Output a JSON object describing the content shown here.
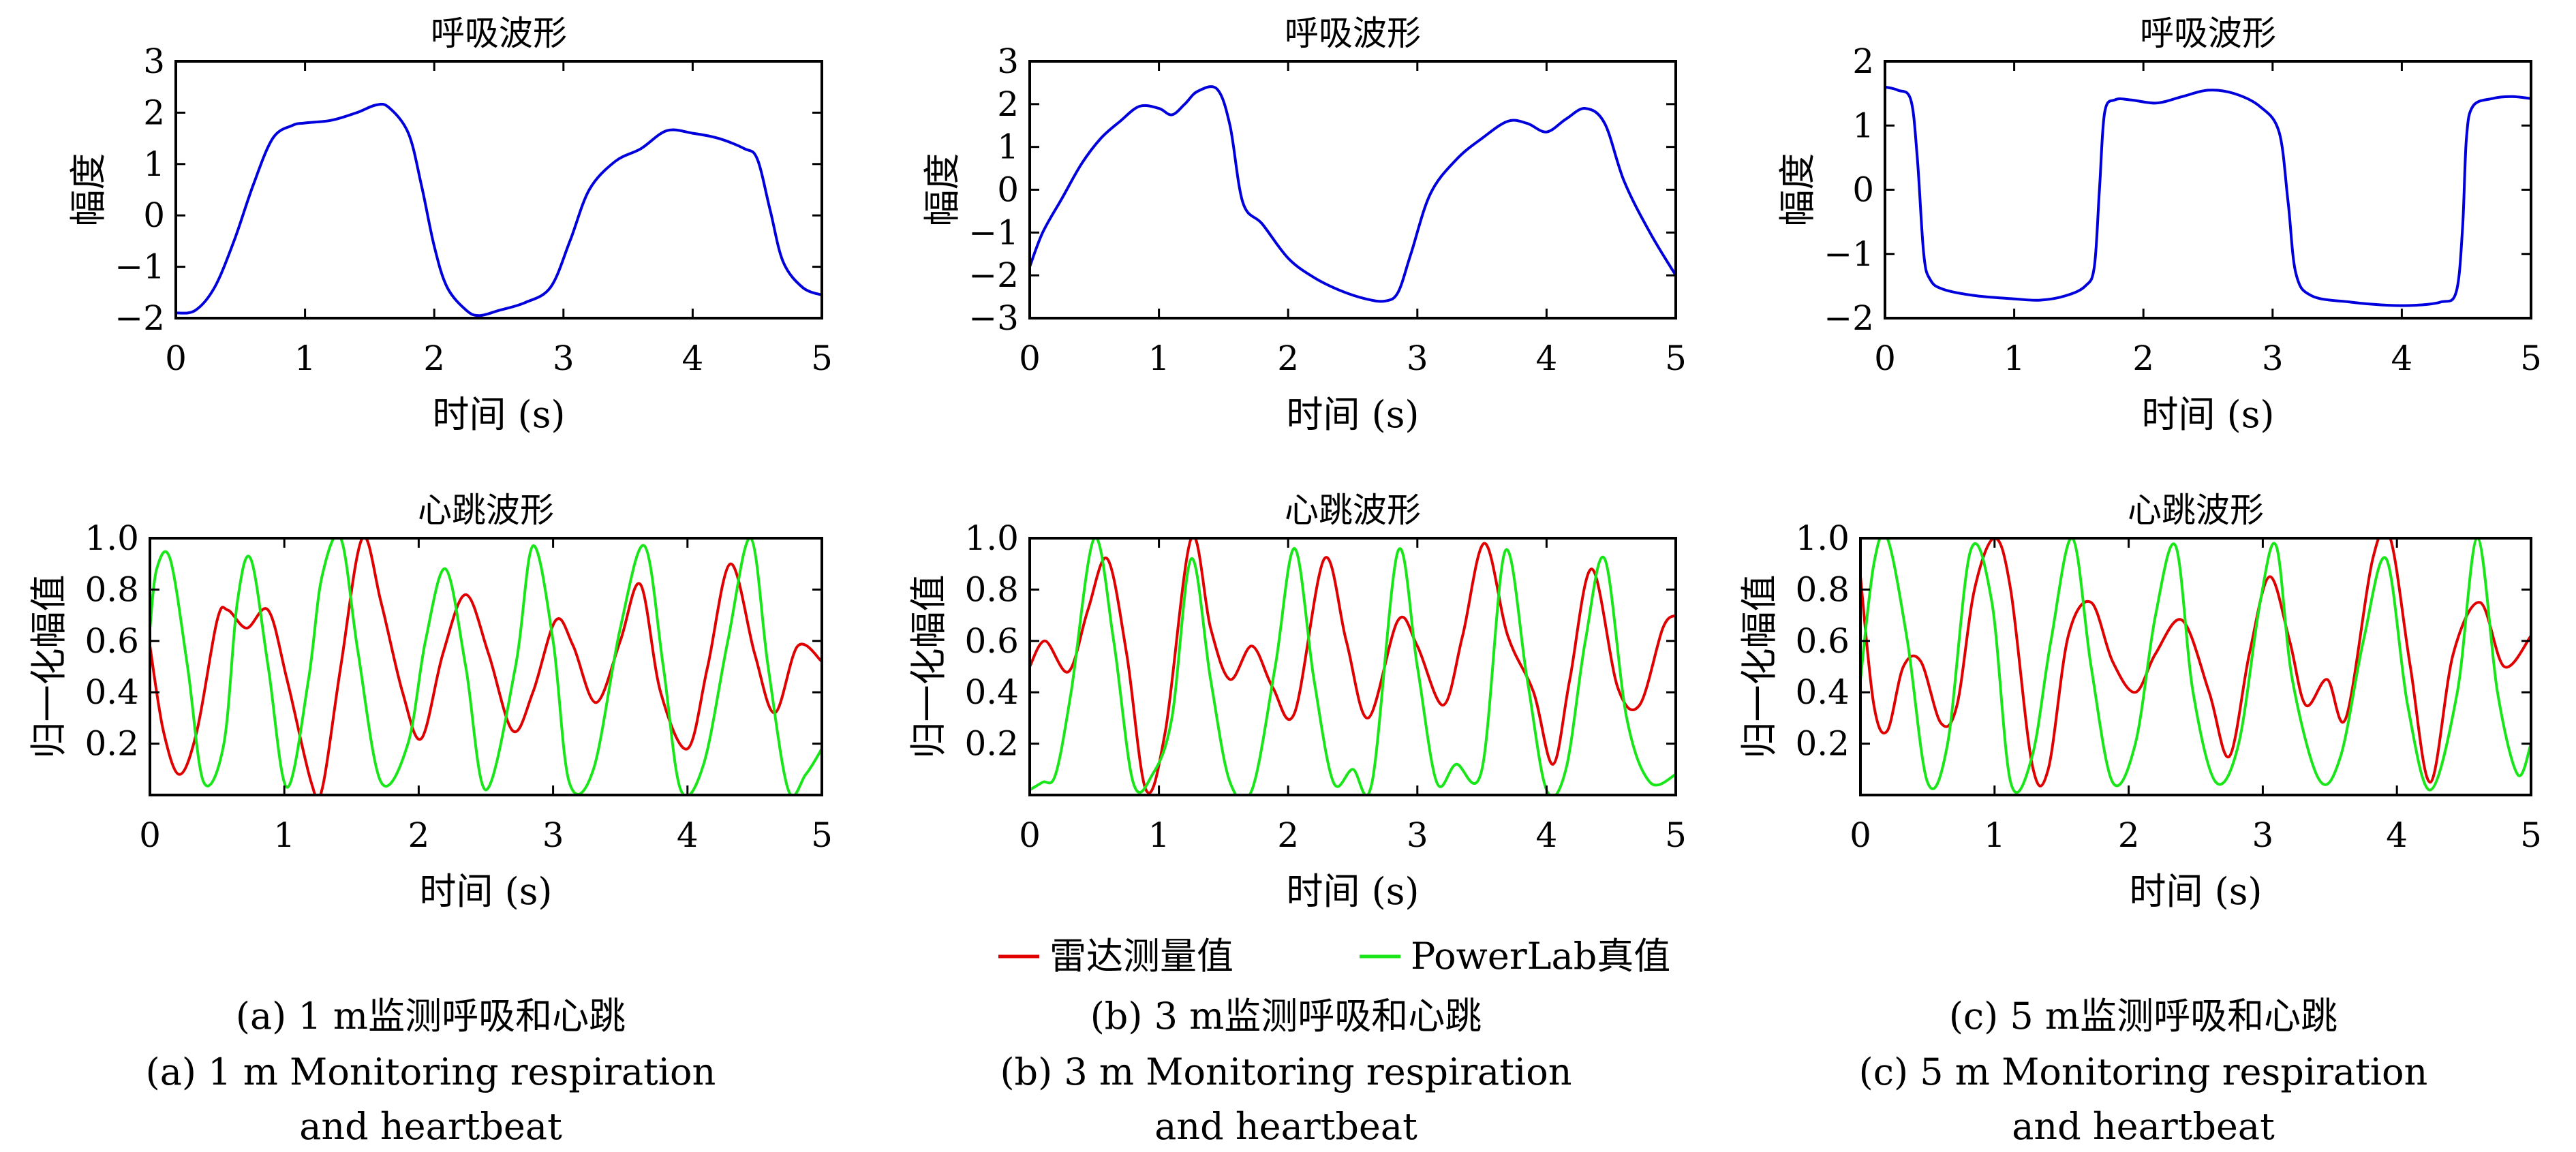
{
  "colors": {
    "radar": "#e00000",
    "powerlab": "#19e619",
    "respiration": "#0000dc",
    "axes": "#000000"
  },
  "legend": {
    "radar_label": "雷达测量值",
    "powerlab_label": "PowerLab真值"
  },
  "captions": [
    {
      "zh": "(a) 1 m监测呼吸和心跳",
      "en1": "(a) 1 m Monitoring respiration",
      "en2": "and heartbeat"
    },
    {
      "zh": "(b) 3 m监测呼吸和心跳",
      "en1": "(b) 3 m Monitoring respiration",
      "en2": "and heartbeat"
    },
    {
      "zh": "(c) 5 m监测呼吸和心跳",
      "en1": "(c) 5 m Monitoring respiration",
      "en2": "and heartbeat"
    }
  ],
  "chart_data": [
    {
      "type": "line",
      "title": "呼吸波形",
      "xlabel": "时间 (s)",
      "ylabel": "幅度",
      "xlim": [
        0,
        5
      ],
      "ylim": [
        -2,
        3
      ],
      "xticks": [
        0,
        1,
        2,
        3,
        4,
        5
      ],
      "yticks": [
        -2,
        -1,
        0,
        1,
        2,
        3
      ],
      "xtick_labels": [
        "0",
        "1",
        "2",
        "3",
        "4",
        "5"
      ],
      "ytick_labels": [
        "−2",
        "−1",
        "0",
        "1",
        "2",
        "3"
      ],
      "series": [
        {
          "color": "#0000dc",
          "x": [
            0,
            0.15,
            0.3,
            0.45,
            0.6,
            0.75,
            0.9,
            1.0,
            1.2,
            1.4,
            1.55,
            1.65,
            1.8,
            1.9,
            2.0,
            2.1,
            2.25,
            2.35,
            2.5,
            2.7,
            2.9,
            3.05,
            3.2,
            3.4,
            3.6,
            3.8,
            4.0,
            4.2,
            4.4,
            4.5,
            4.6,
            4.7,
            4.85,
            5.0
          ],
          "y": [
            -1.9,
            -1.85,
            -1.4,
            -0.5,
            0.6,
            1.5,
            1.75,
            1.8,
            1.85,
            2.0,
            2.15,
            2.1,
            1.6,
            0.6,
            -0.6,
            -1.4,
            -1.85,
            -1.95,
            -1.85,
            -1.7,
            -1.4,
            -0.5,
            0.5,
            1.05,
            1.3,
            1.65,
            1.6,
            1.5,
            1.3,
            1.1,
            0.1,
            -0.9,
            -1.4,
            -1.55
          ]
        }
      ]
    },
    {
      "type": "line",
      "title": "呼吸波形",
      "xlabel": "时间 (s)",
      "ylabel": "幅度",
      "xlim": [
        0,
        5
      ],
      "ylim": [
        -3,
        3
      ],
      "xticks": [
        0,
        1,
        2,
        3,
        4,
        5
      ],
      "yticks": [
        -3,
        -2,
        -1,
        0,
        1,
        2,
        3
      ],
      "xtick_labels": [
        "0",
        "1",
        "2",
        "3",
        "4",
        "5"
      ],
      "ytick_labels": [
        "−3",
        "−2",
        "−1",
        "0",
        "1",
        "2",
        "3"
      ],
      "series": [
        {
          "color": "#0000dc",
          "x": [
            0,
            0.1,
            0.25,
            0.4,
            0.55,
            0.7,
            0.85,
            1.0,
            1.1,
            1.2,
            1.3,
            1.45,
            1.55,
            1.65,
            1.8,
            2.0,
            2.2,
            2.4,
            2.6,
            2.75,
            2.85,
            2.95,
            3.1,
            3.3,
            3.5,
            3.7,
            3.85,
            4.0,
            4.15,
            4.3,
            4.45,
            4.6,
            4.8,
            5.0
          ],
          "y": [
            -1.8,
            -1.0,
            -0.2,
            0.6,
            1.2,
            1.6,
            1.95,
            1.9,
            1.75,
            2.0,
            2.3,
            2.35,
            1.5,
            -0.3,
            -0.8,
            -1.6,
            -2.05,
            -2.35,
            -2.55,
            -2.6,
            -2.4,
            -1.5,
            -0.1,
            0.7,
            1.2,
            1.6,
            1.55,
            1.35,
            1.65,
            1.9,
            1.55,
            0.2,
            -1.0,
            -2.0
          ]
        }
      ]
    },
    {
      "type": "line",
      "title": "呼吸波形",
      "xlabel": "时间 (s)",
      "ylabel": "幅度",
      "xlim": [
        0,
        5
      ],
      "ylim": [
        -2,
        2
      ],
      "xticks": [
        0,
        1,
        2,
        3,
        4,
        5
      ],
      "yticks": [
        -2,
        -1,
        0,
        1,
        2
      ],
      "xtick_labels": [
        "0",
        "1",
        "2",
        "3",
        "4",
        "5"
      ],
      "ytick_labels": [
        "−2",
        "−1",
        "0",
        "1",
        "2"
      ],
      "series": [
        {
          "color": "#0000dc",
          "x": [
            0,
            0.1,
            0.2,
            0.25,
            0.3,
            0.35,
            0.45,
            0.7,
            1.0,
            1.2,
            1.4,
            1.55,
            1.62,
            1.66,
            1.7,
            1.78,
            1.9,
            2.1,
            2.3,
            2.5,
            2.7,
            2.9,
            3.05,
            3.12,
            3.18,
            3.3,
            3.6,
            3.9,
            4.1,
            4.3,
            4.42,
            4.47,
            4.5,
            4.55,
            4.7,
            4.85,
            5.0
          ],
          "y": [
            1.6,
            1.55,
            1.4,
            0.5,
            -1.0,
            -1.4,
            -1.55,
            -1.65,
            -1.7,
            -1.72,
            -1.65,
            -1.5,
            -1.2,
            0,
            1.2,
            1.4,
            1.4,
            1.35,
            1.45,
            1.55,
            1.5,
            1.3,
            0.9,
            -0.2,
            -1.3,
            -1.65,
            -1.75,
            -1.8,
            -1.8,
            -1.75,
            -1.6,
            -0.6,
            0.8,
            1.3,
            1.42,
            1.45,
            1.42
          ]
        }
      ]
    },
    {
      "type": "line",
      "title": "心跳波形",
      "xlabel": "时间 (s)",
      "ylabel": "归一化幅值",
      "xlim": [
        0,
        5
      ],
      "ylim": [
        0,
        1
      ],
      "xticks": [
        0,
        1,
        2,
        3,
        4,
        5
      ],
      "yticks": [
        0.2,
        0.4,
        0.6,
        0.8,
        1.0
      ],
      "xtick_labels": [
        "0",
        "1",
        "2",
        "3",
        "4",
        "5"
      ],
      "ytick_labels": [
        "0.2",
        "0.4",
        "0.6",
        "0.8",
        "1.0"
      ],
      "series": [
        {
          "name": "雷达测量值",
          "color": "#e00000",
          "x": [
            0,
            0.1,
            0.22,
            0.35,
            0.5,
            0.58,
            0.72,
            0.88,
            1.02,
            1.2,
            1.28,
            1.42,
            1.58,
            1.72,
            1.88,
            2.02,
            2.18,
            2.35,
            2.52,
            2.7,
            2.85,
            3.02,
            3.15,
            3.32,
            3.5,
            3.65,
            3.8,
            4.0,
            4.15,
            4.32,
            4.5,
            4.65,
            4.82,
            5.0
          ],
          "y": [
            0.58,
            0.25,
            0.08,
            0.25,
            0.68,
            0.72,
            0.65,
            0.72,
            0.45,
            0.05,
            0.02,
            0.5,
            1.0,
            0.75,
            0.4,
            0.22,
            0.55,
            0.78,
            0.55,
            0.25,
            0.4,
            0.68,
            0.58,
            0.36,
            0.6,
            0.82,
            0.4,
            0.18,
            0.5,
            0.9,
            0.55,
            0.32,
            0.58,
            0.52
          ]
        },
        {
          "name": "PowerLab真值",
          "color": "#19e619",
          "x": [
            0,
            0.05,
            0.15,
            0.28,
            0.4,
            0.55,
            0.65,
            0.75,
            0.88,
            1.02,
            1.18,
            1.28,
            1.42,
            1.55,
            1.72,
            1.92,
            2.05,
            2.2,
            2.35,
            2.5,
            2.72,
            2.85,
            3.0,
            3.12,
            3.3,
            3.5,
            3.68,
            3.82,
            3.95,
            4.12,
            4.3,
            4.47,
            4.6,
            4.75,
            4.88,
            5.0
          ],
          "y": [
            0.65,
            0.88,
            0.92,
            0.5,
            0.05,
            0.2,
            0.75,
            0.92,
            0.5,
            0.03,
            0.45,
            0.85,
            1.0,
            0.55,
            0.05,
            0.2,
            0.6,
            0.88,
            0.5,
            0.02,
            0.5,
            0.97,
            0.6,
            0.05,
            0.1,
            0.65,
            0.97,
            0.5,
            0.02,
            0.12,
            0.6,
            1.0,
            0.5,
            0.02,
            0.08,
            0.18
          ]
        }
      ]
    },
    {
      "type": "line",
      "title": "心跳波形",
      "xlabel": "时间 (s)",
      "ylabel": "归一化幅值",
      "xlim": [
        0,
        5
      ],
      "ylim": [
        0,
        1
      ],
      "xticks": [
        0,
        1,
        2,
        3,
        4,
        5
      ],
      "yticks": [
        0.2,
        0.4,
        0.6,
        0.8,
        1.0
      ],
      "xtick_labels": [
        "0",
        "1",
        "2",
        "3",
        "4",
        "5"
      ],
      "ytick_labels": [
        "0.2",
        "0.4",
        "0.6",
        "0.8",
        "1.0"
      ],
      "series": [
        {
          "name": "雷达测量值",
          "color": "#e00000",
          "x": [
            0,
            0.12,
            0.3,
            0.45,
            0.6,
            0.75,
            0.9,
            1.05,
            1.25,
            1.4,
            1.55,
            1.72,
            1.88,
            2.05,
            2.28,
            2.45,
            2.62,
            2.85,
            3.0,
            3.2,
            3.35,
            3.52,
            3.7,
            3.9,
            4.05,
            4.18,
            4.35,
            4.55,
            4.72,
            4.9,
            5.0
          ],
          "y": [
            0.5,
            0.6,
            0.48,
            0.72,
            0.92,
            0.55,
            0.02,
            0.25,
            1.0,
            0.65,
            0.45,
            0.58,
            0.42,
            0.32,
            0.92,
            0.6,
            0.3,
            0.68,
            0.58,
            0.35,
            0.62,
            0.98,
            0.62,
            0.4,
            0.12,
            0.45,
            0.88,
            0.42,
            0.35,
            0.65,
            0.7
          ]
        },
        {
          "name": "PowerLab真值",
          "color": "#19e619",
          "x": [
            0,
            0.1,
            0.2,
            0.32,
            0.5,
            0.65,
            0.8,
            0.95,
            1.1,
            1.25,
            1.4,
            1.55,
            1.72,
            1.9,
            2.05,
            2.2,
            2.35,
            2.5,
            2.65,
            2.85,
            3.0,
            3.15,
            3.3,
            3.5,
            3.68,
            3.85,
            4.0,
            4.15,
            4.3,
            4.45,
            4.62,
            4.8,
            5.0
          ],
          "y": [
            0.02,
            0.05,
            0.08,
            0.4,
            1.0,
            0.6,
            0.05,
            0.08,
            0.3,
            0.92,
            0.45,
            0.05,
            0.02,
            0.5,
            0.96,
            0.45,
            0.05,
            0.1,
            0.05,
            0.95,
            0.5,
            0.05,
            0.12,
            0.1,
            0.95,
            0.45,
            0.02,
            0.1,
            0.6,
            0.92,
            0.3,
            0.05,
            0.08
          ]
        }
      ]
    },
    {
      "type": "line",
      "title": "心跳波形",
      "xlabel": "时间 (s)",
      "ylabel": "归一化幅值",
      "xlim": [
        0,
        5
      ],
      "ylim": [
        0,
        1
      ],
      "xticks": [
        0,
        1,
        2,
        3,
        4,
        5
      ],
      "yticks": [
        0.2,
        0.4,
        0.6,
        0.8,
        1.0
      ],
      "xtick_labels": [
        "0",
        "1",
        "2",
        "3",
        "4",
        "5"
      ],
      "ytick_labels": [
        "0.2",
        "0.4",
        "0.6",
        "0.8",
        "1.0"
      ],
      "series": [
        {
          "name": "雷达测量值",
          "color": "#e00000",
          "x": [
            0,
            0.1,
            0.2,
            0.32,
            0.45,
            0.6,
            0.72,
            0.85,
            1.0,
            1.12,
            1.28,
            1.4,
            1.55,
            1.72,
            1.88,
            2.05,
            2.2,
            2.4,
            2.6,
            2.75,
            2.9,
            3.05,
            3.2,
            3.32,
            3.48,
            3.62,
            3.82,
            3.95,
            4.1,
            4.25,
            4.42,
            4.62,
            4.8,
            5.0
          ],
          "y": [
            0.85,
            0.35,
            0.25,
            0.5,
            0.52,
            0.28,
            0.35,
            0.8,
            1.0,
            0.8,
            0.12,
            0.1,
            0.62,
            0.75,
            0.52,
            0.4,
            0.55,
            0.68,
            0.4,
            0.15,
            0.55,
            0.85,
            0.6,
            0.35,
            0.45,
            0.3,
            0.92,
            1.0,
            0.5,
            0.05,
            0.55,
            0.75,
            0.5,
            0.62
          ]
        },
        {
          "name": "PowerLab真值",
          "color": "#19e619",
          "x": [
            0,
            0.1,
            0.2,
            0.35,
            0.5,
            0.65,
            0.82,
            0.98,
            1.12,
            1.28,
            1.42,
            1.58,
            1.72,
            1.88,
            2.05,
            2.2,
            2.35,
            2.48,
            2.65,
            2.82,
            2.98,
            3.1,
            3.22,
            3.42,
            3.58,
            3.75,
            3.92,
            4.08,
            4.25,
            4.45,
            4.6,
            4.75,
            4.9,
            5.0
          ],
          "y": [
            0.45,
            0.9,
            1.0,
            0.6,
            0.05,
            0.2,
            0.95,
            0.75,
            0.05,
            0.15,
            0.6,
            1.0,
            0.5,
            0.05,
            0.2,
            0.7,
            0.97,
            0.4,
            0.05,
            0.2,
            0.75,
            0.97,
            0.45,
            0.06,
            0.15,
            0.6,
            0.92,
            0.35,
            0.02,
            0.4,
            1.0,
            0.4,
            0.08,
            0.2
          ]
        }
      ]
    }
  ]
}
